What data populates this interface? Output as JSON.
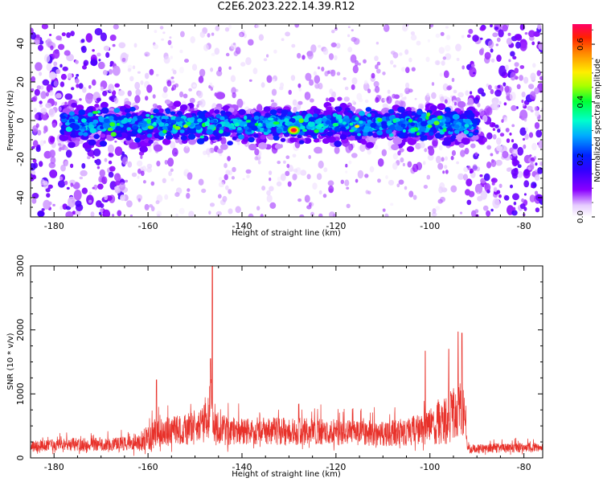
{
  "title": "C2E6.2023.222.14.39.R12",
  "chart_data": [
    {
      "type": "heatmap",
      "xlabel": "Height of straight line (km)",
      "ylabel": "Frequency (Hz)",
      "xlim": [
        -185,
        -76
      ],
      "ylim": [
        -50,
        50
      ],
      "xticks": [
        -180,
        -160,
        -140,
        -120,
        -100,
        -80
      ],
      "yticks": [
        -40,
        -20,
        0,
        20,
        40
      ],
      "colorbar": {
        "label": "Normalized spectral amplitude",
        "range": [
          0,
          0.67
        ],
        "ticks": [
          0.0,
          0.2,
          0.4,
          0.6
        ],
        "colormap": "rainbow"
      },
      "band": {
        "center_hz": -2,
        "halfwidth_hz": 8,
        "noise_region_km": [
          [
            -185,
            -165
          ],
          [
            -92,
            -76
          ]
        ],
        "peak_km": -129,
        "peak_amplitude": 0.67
      },
      "grid": false
    },
    {
      "type": "line",
      "xlabel": "Height of straight line (km)",
      "ylabel": "SNR (10 * v/v)",
      "xlim": [
        -185,
        -76
      ],
      "ylim": [
        0,
        3000
      ],
      "xticks": [
        -180,
        -160,
        -140,
        -120,
        -100,
        -80
      ],
      "yticks": [
        0,
        1000,
        2000,
        3000
      ],
      "color": "#e8312a",
      "grid": false,
      "envelope": {
        "x": [
          -185,
          -175,
          -166,
          -162,
          -158,
          -155,
          -150,
          -147.5,
          -146.5,
          -146,
          -144,
          -140,
          -130,
          -120,
          -115,
          -110,
          -105,
          -100,
          -97,
          -95,
          -93,
          -92,
          -90,
          -80,
          -76
        ],
        "baseline": [
          150,
          170,
          170,
          190,
          280,
          330,
          360,
          500,
          700,
          420,
          340,
          330,
          330,
          320,
          310,
          300,
          320,
          380,
          420,
          520,
          620,
          100,
          120,
          130,
          130
        ],
        "spread": [
          200,
          230,
          250,
          340,
          520,
          520,
          560,
          650,
          900,
          600,
          520,
          480,
          480,
          460,
          430,
          440,
          480,
          620,
          850,
          950,
          1100,
          150,
          160,
          170,
          160
        ]
      },
      "peaks": [
        {
          "x": -146.3,
          "y": 3000
        },
        {
          "x": -146.7,
          "y": 1550
        },
        {
          "x": -158.2,
          "y": 1220
        },
        {
          "x": -101,
          "y": 1670
        },
        {
          "x": -94,
          "y": 1970
        },
        {
          "x": -93.2,
          "y": 1950
        },
        {
          "x": -96,
          "y": 1700
        }
      ]
    }
  ]
}
